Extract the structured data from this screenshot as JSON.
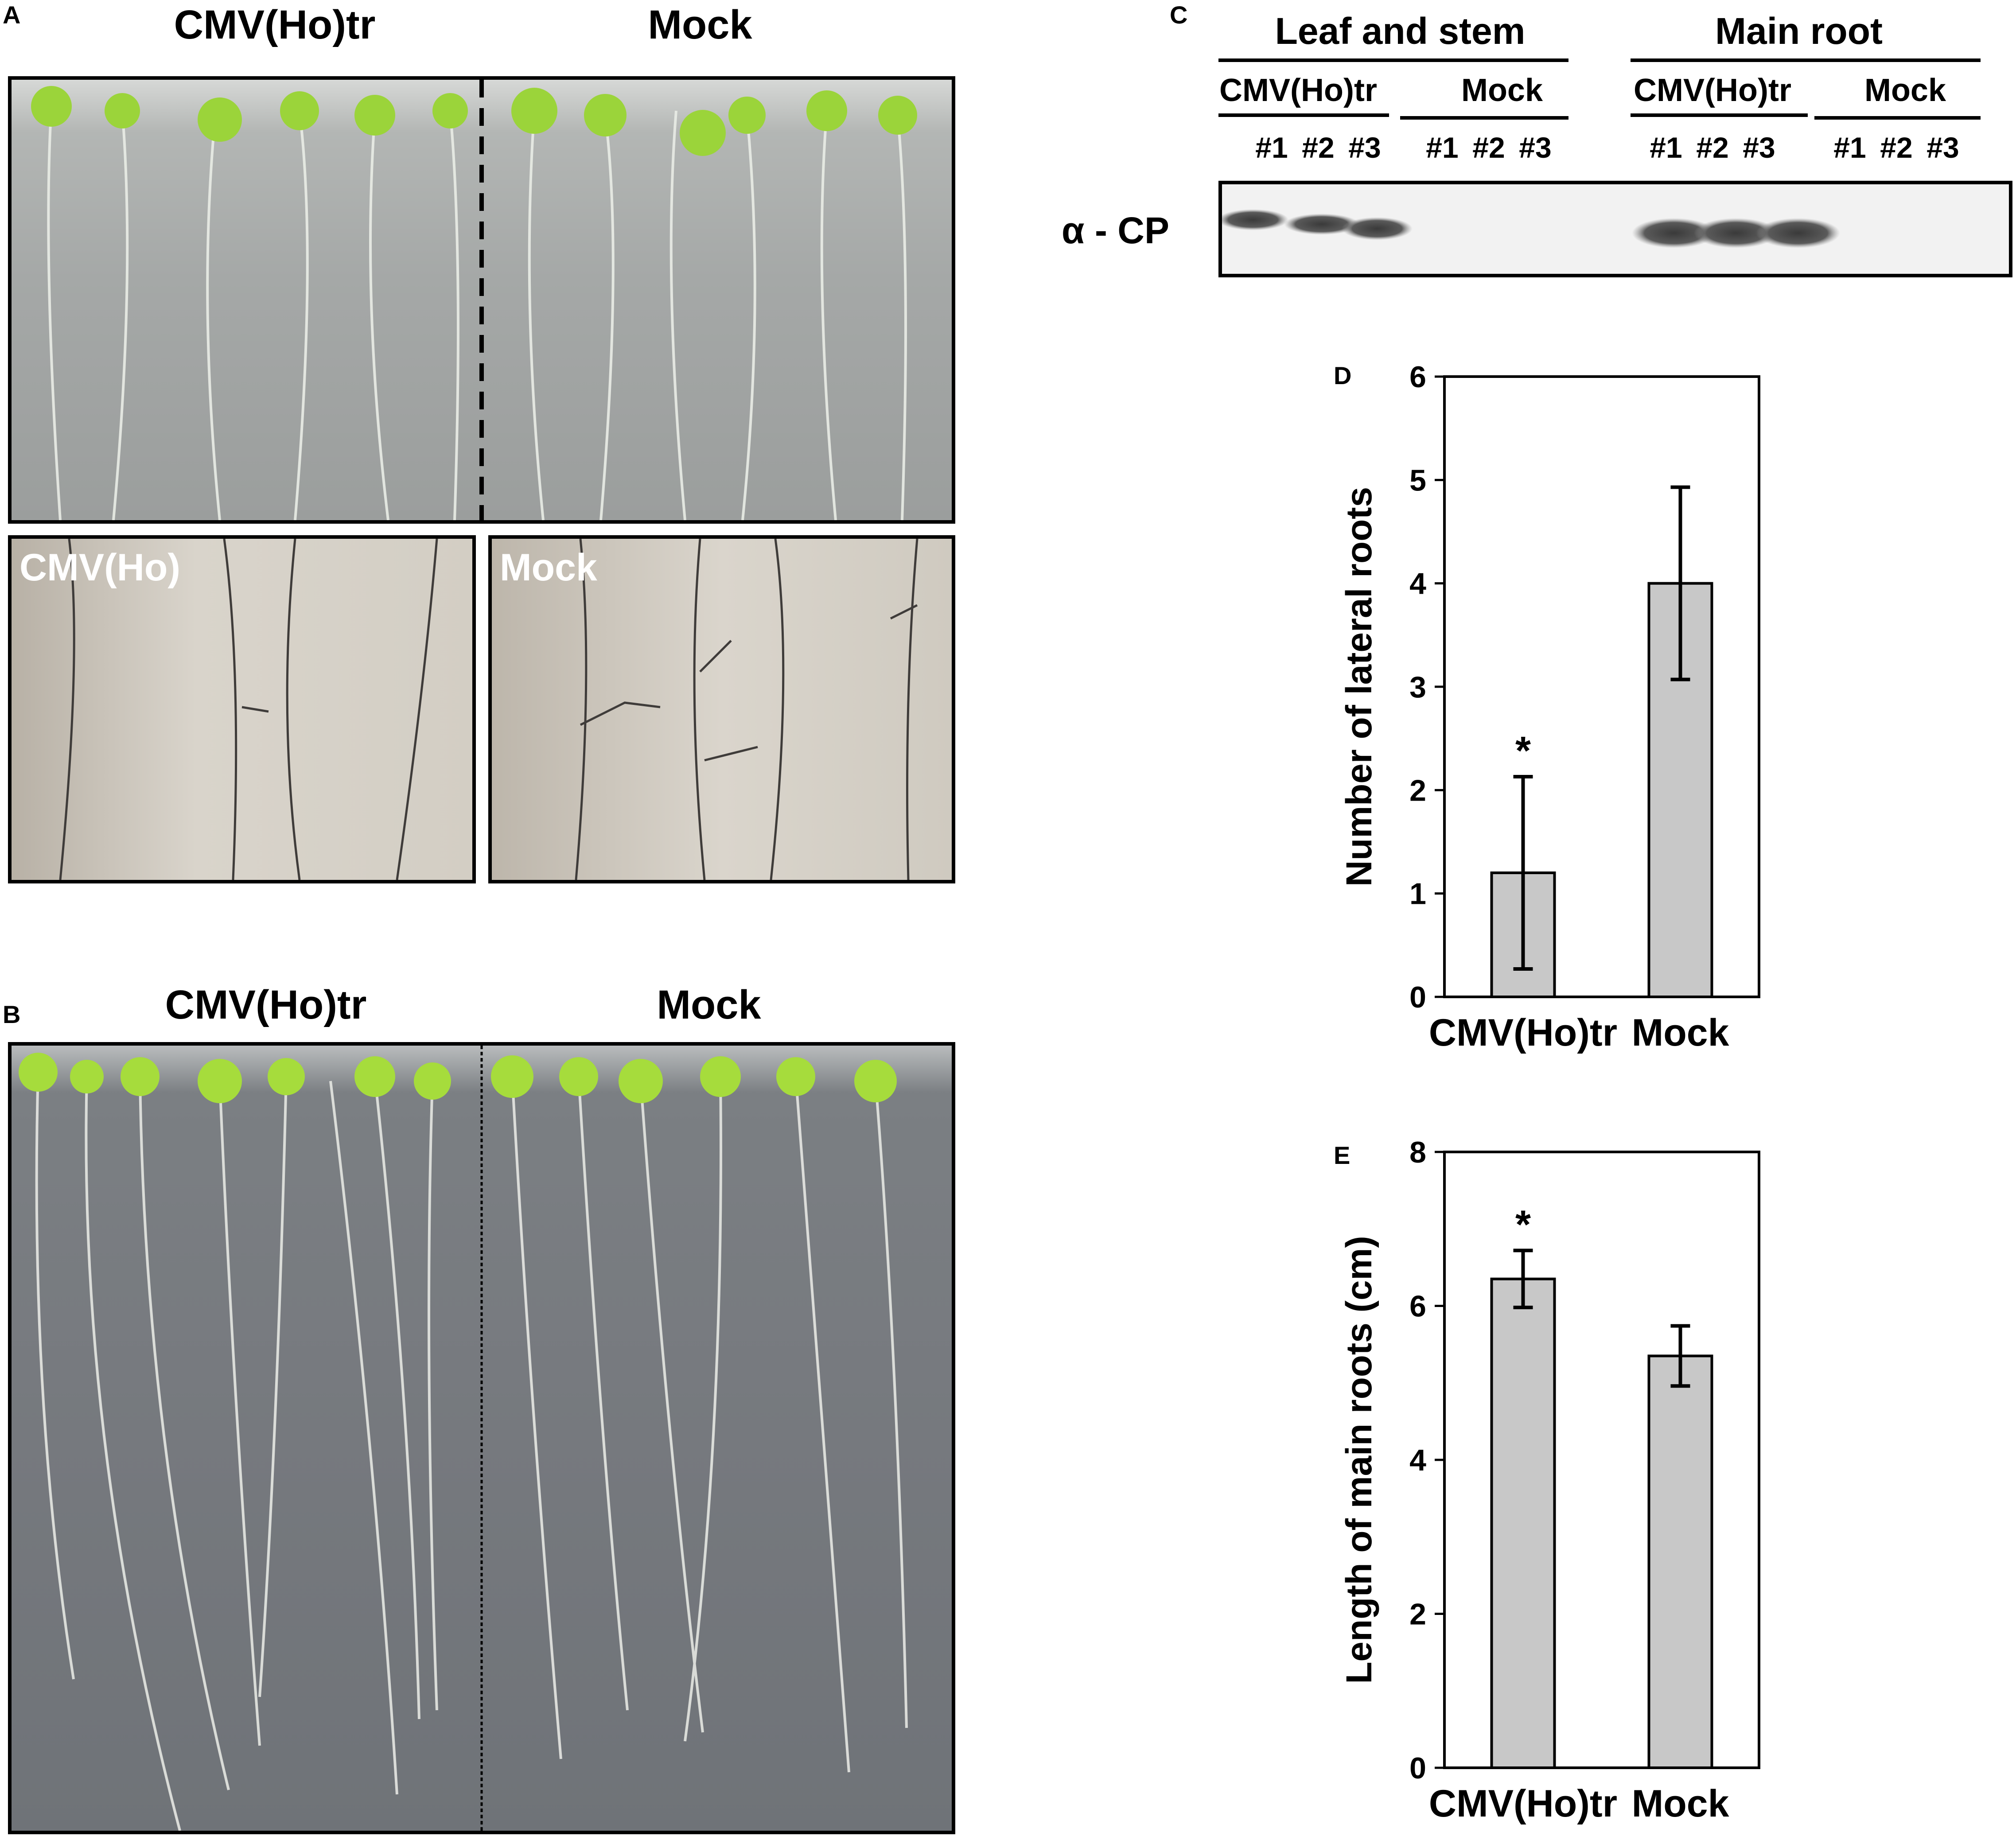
{
  "panels": {
    "A": {
      "letter": "A",
      "header_left": "CMV(Ho)tr",
      "header_right": "Mock",
      "inset_left": "CMV(Ho)",
      "inset_right": "Mock"
    },
    "B": {
      "letter": "B",
      "header_left": "CMV(Ho)tr",
      "header_right": "Mock"
    },
    "C": {
      "letter": "C",
      "group_left": "Leaf and stem",
      "group_right": "Main root",
      "sub_labels": [
        "CMV(Ho)tr",
        "Mock",
        "CMV(Ho)tr",
        "Mock"
      ],
      "lanes": [
        "#1",
        "#2",
        "#3",
        "#1",
        "#2",
        "#3",
        "#1",
        "#2",
        "#3",
        "#1",
        "#2",
        "#3"
      ],
      "antibody": "α - CP"
    },
    "D": {
      "letter": "D"
    },
    "E": {
      "letter": "E"
    }
  },
  "chart_data": [
    {
      "type": "bar",
      "panel": "D",
      "categories": [
        "CMV(Ho)tr",
        "Mock"
      ],
      "values": [
        1.2,
        4.0
      ],
      "errors": [
        0.93,
        0.93
      ],
      "significance": [
        "*",
        ""
      ],
      "ylabel": "Number of lateral roots",
      "ylim": [
        0,
        6
      ],
      "yticks": [
        0,
        1,
        2,
        3,
        4,
        5,
        6
      ],
      "bar_color": "#c8c8c8"
    },
    {
      "type": "bar",
      "panel": "E",
      "categories": [
        "CMV(Ho)tr",
        "Mock"
      ],
      "values": [
        6.35,
        5.35
      ],
      "errors": [
        0.37,
        0.39
      ],
      "significance": [
        "*",
        ""
      ],
      "ylabel": "Length of main  roots (cm)",
      "ylim": [
        0,
        8
      ],
      "yticks": [
        0,
        2,
        4,
        6,
        8
      ],
      "bar_color": "#c8c8c8"
    }
  ]
}
